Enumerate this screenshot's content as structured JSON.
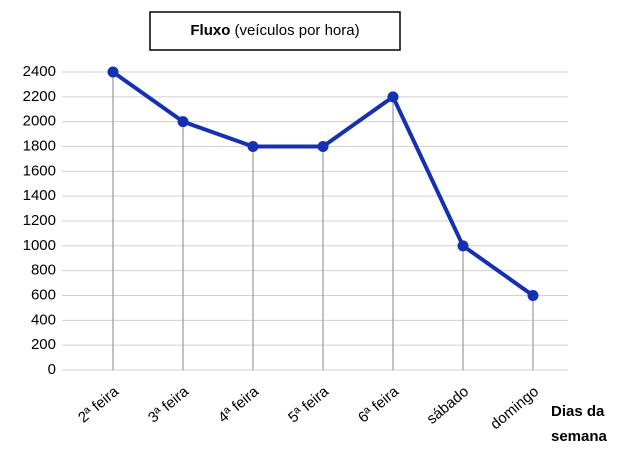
{
  "chart_data": {
    "type": "line",
    "title": "Fluxo",
    "title_unit": "(veículos por hora)",
    "x_label": [
      "Dias da",
      "semana"
    ],
    "categories": [
      "2ª feira",
      "3ª feira",
      "4ª feira",
      "5ª feira",
      "6ª feira",
      "sábado",
      "domingo"
    ],
    "values": [
      2400,
      2000,
      1800,
      1800,
      2200,
      1000,
      600
    ],
    "color": "#1530b0",
    "ylim": [
      0,
      2400
    ],
    "yticks": [
      0,
      200,
      400,
      600,
      800,
      1000,
      1200,
      1400,
      1600,
      1800,
      2000,
      2200,
      2400
    ],
    "grid": true
  }
}
